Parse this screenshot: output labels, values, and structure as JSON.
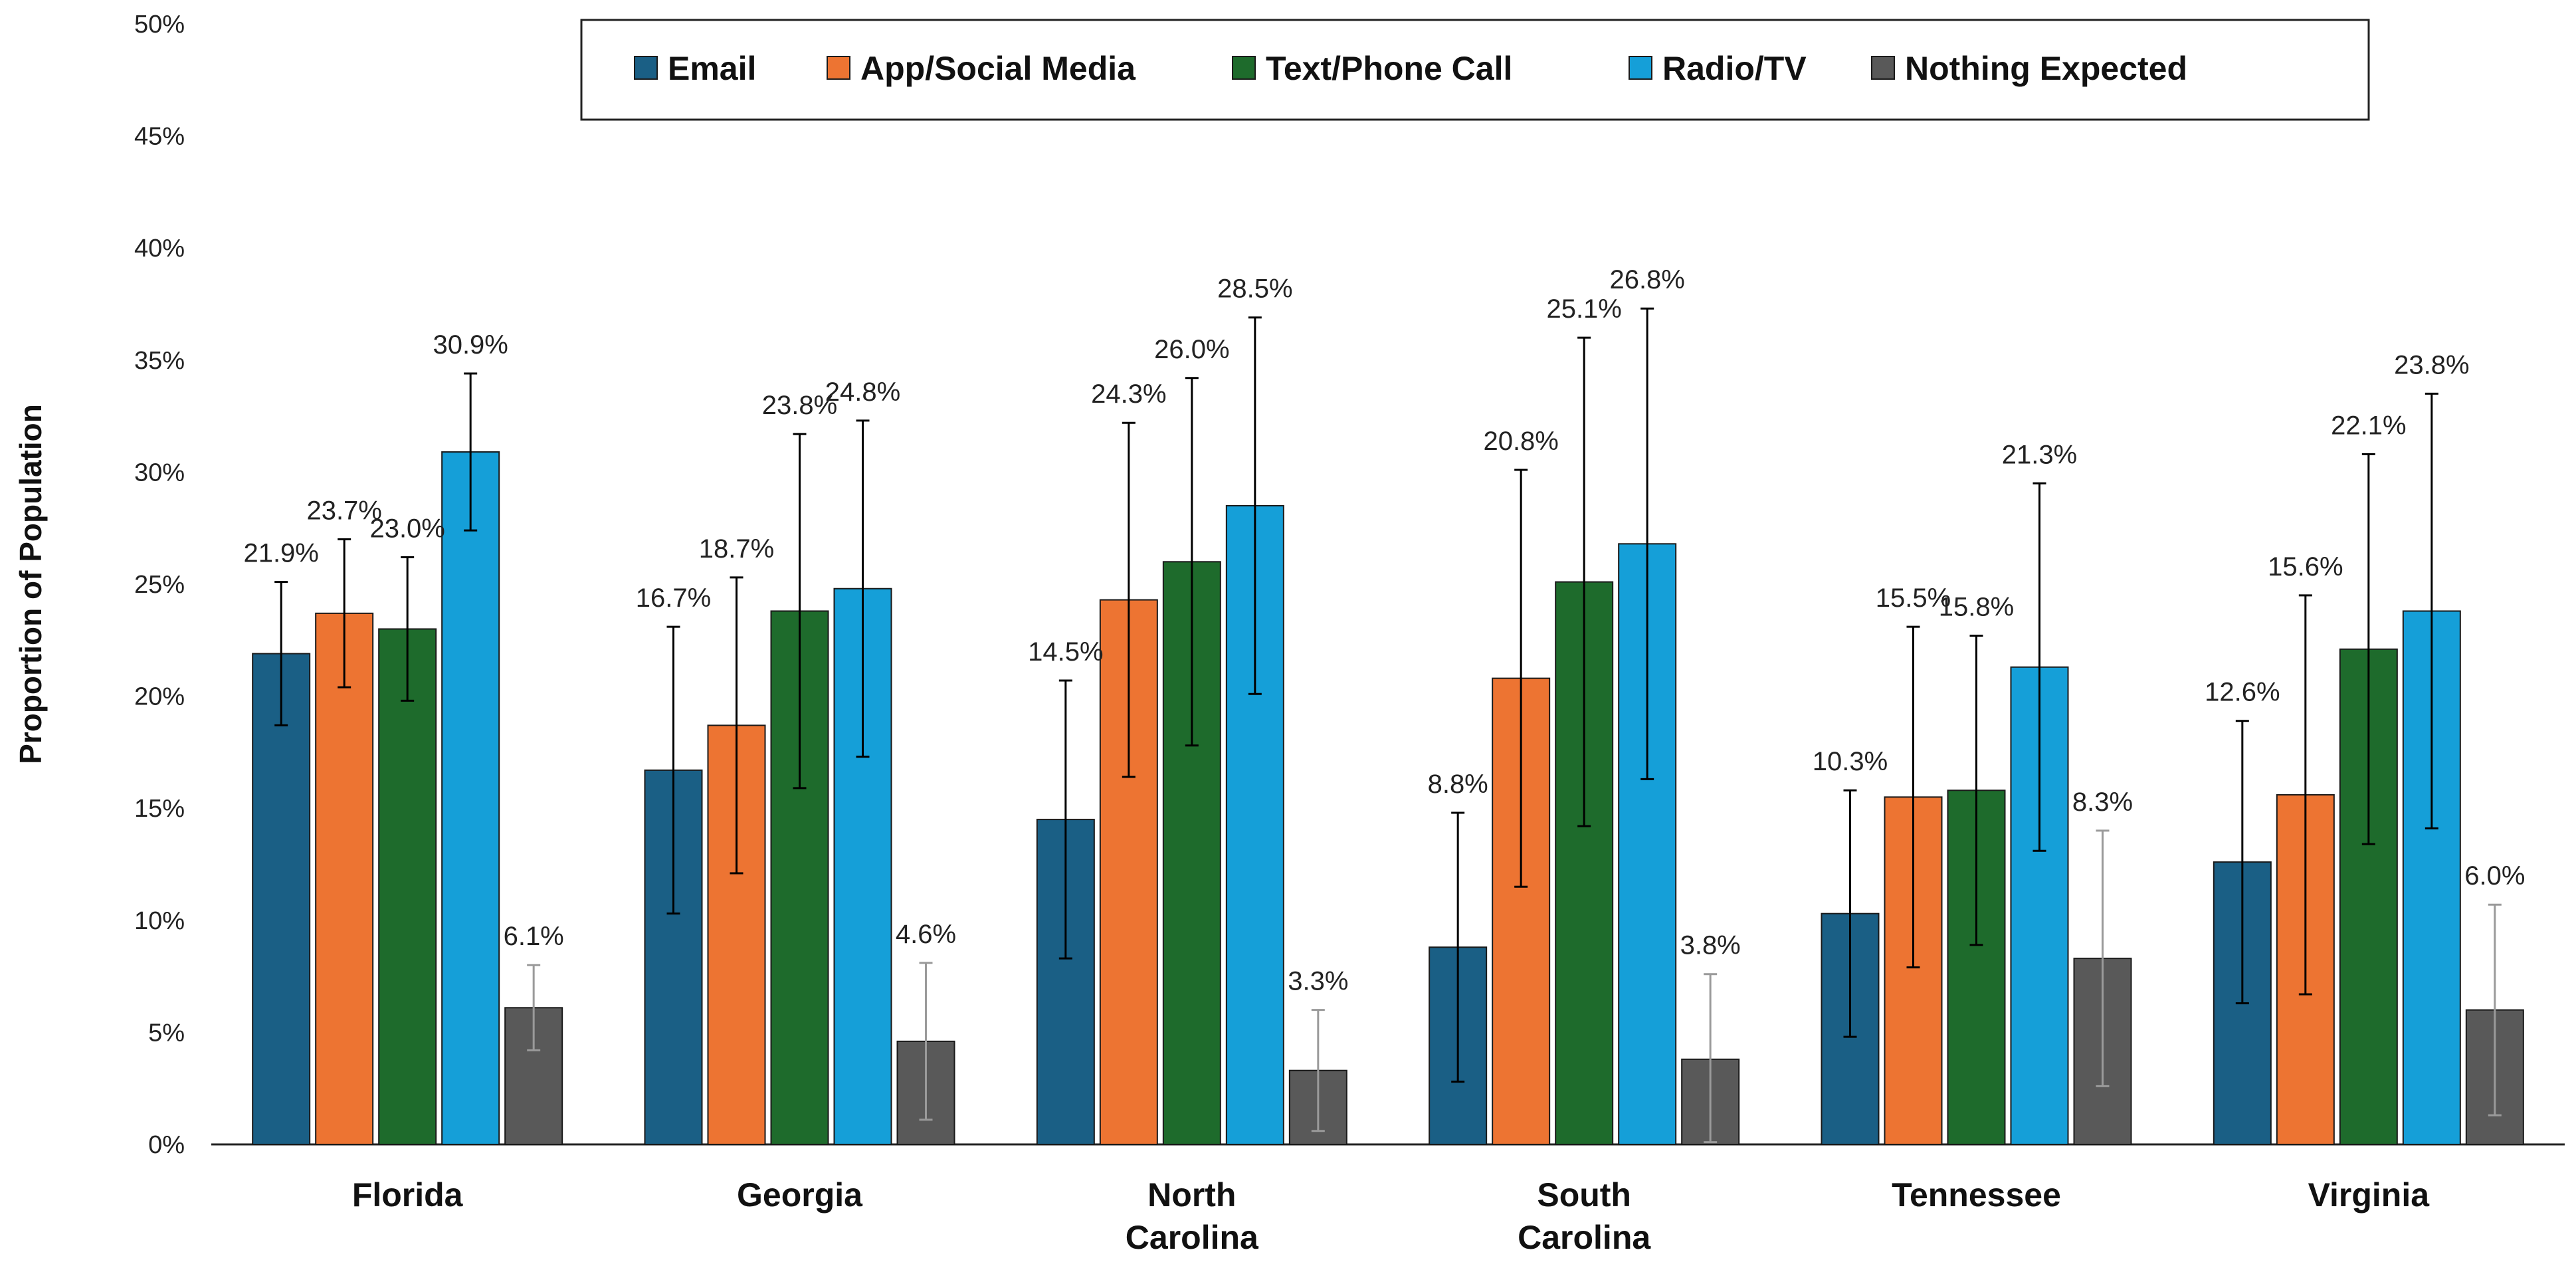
{
  "chart_data": {
    "type": "bar",
    "title": "",
    "xlabel": "",
    "ylabel": "Proportion of Population",
    "ylim": [
      0,
      50
    ],
    "yticks": [
      0,
      5,
      10,
      15,
      20,
      25,
      30,
      35,
      40,
      45,
      50
    ],
    "tick_suffix": "%",
    "grid": false,
    "legend_position": "top-center",
    "categories": [
      [
        "Florida"
      ],
      [
        "Georgia"
      ],
      [
        "North",
        "Carolina"
      ],
      [
        "South",
        "Carolina"
      ],
      [
        "Tennessee"
      ],
      [
        "Virginia"
      ]
    ],
    "series": [
      {
        "name": "Email",
        "color": "#1a5f85",
        "error_color": "#000000",
        "values": [
          21.9,
          16.7,
          14.5,
          8.8,
          10.3,
          12.6
        ],
        "labels": [
          "21.9%",
          "16.7%",
          "14.5%",
          "8.8%",
          "10.3%",
          "12.6%"
        ],
        "error_low": [
          18.7,
          10.3,
          8.3,
          2.8,
          4.8,
          6.3
        ],
        "error_high": [
          25.1,
          23.1,
          20.7,
          14.8,
          15.8,
          18.9
        ]
      },
      {
        "name": "App/Social Media",
        "color": "#ed7432",
        "error_color": "#000000",
        "values": [
          23.7,
          18.7,
          24.3,
          20.8,
          15.5,
          15.6
        ],
        "labels": [
          "23.7%",
          "18.7%",
          "24.3%",
          "20.8%",
          "15.5%",
          "15.6%"
        ],
        "error_low": [
          20.4,
          12.1,
          16.4,
          11.5,
          7.9,
          6.7
        ],
        "error_high": [
          27.0,
          25.3,
          32.2,
          30.1,
          23.1,
          24.5
        ]
      },
      {
        "name": "Text/Phone Call",
        "color": "#1e6b2c",
        "error_color": "#000000",
        "values": [
          23.0,
          23.8,
          26.0,
          25.1,
          15.8,
          22.1
        ],
        "labels": [
          "23.0%",
          "23.8%",
          "26.0%",
          "25.1%",
          "15.8%",
          "22.1%"
        ],
        "error_low": [
          19.8,
          15.9,
          17.8,
          14.2,
          8.9,
          13.4
        ],
        "error_high": [
          26.2,
          31.7,
          34.2,
          36.0,
          22.7,
          30.8
        ]
      },
      {
        "name": "Radio/TV",
        "color": "#159fd8",
        "error_color": "#000000",
        "values": [
          30.9,
          24.8,
          28.5,
          26.8,
          21.3,
          23.8
        ],
        "labels": [
          "30.9%",
          "24.8%",
          "28.5%",
          "26.8%",
          "21.3%",
          "23.8%"
        ],
        "error_low": [
          27.4,
          17.3,
          20.1,
          16.3,
          13.1,
          14.1
        ],
        "error_high": [
          34.4,
          32.3,
          36.9,
          37.3,
          29.5,
          33.5
        ]
      },
      {
        "name": "Nothing Expected",
        "color": "#595959",
        "error_color": "#9a9a9a",
        "values": [
          6.1,
          4.6,
          3.3,
          3.8,
          8.3,
          6.0
        ],
        "labels": [
          "6.1%",
          "4.6%",
          "3.3%",
          "3.8%",
          "8.3%",
          "6.0%"
        ],
        "error_low": [
          4.2,
          1.1,
          0.6,
          0.1,
          2.6,
          1.3
        ],
        "error_high": [
          8.0,
          8.1,
          6.0,
          7.6,
          14.0,
          10.7
        ]
      }
    ]
  }
}
